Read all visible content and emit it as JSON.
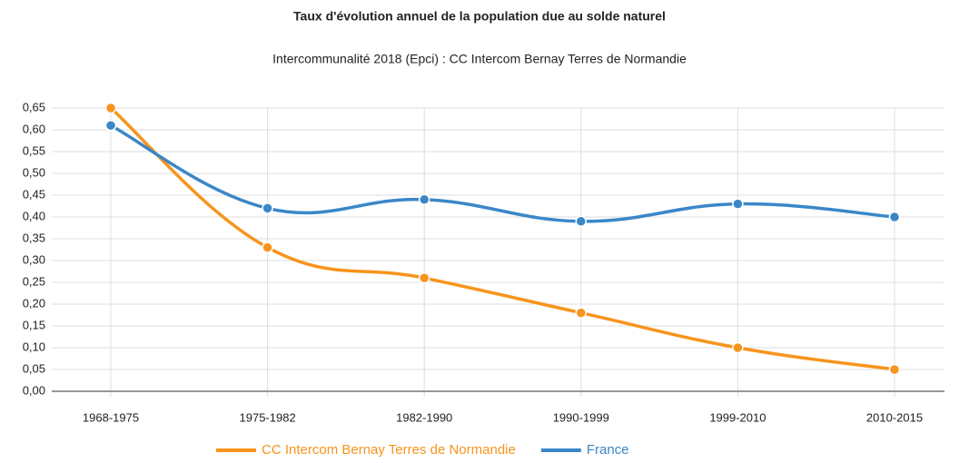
{
  "chart_data": {
    "type": "line",
    "title": "Taux d'évolution annuel de la population due au solde naturel",
    "subtitle": "Intercommunalité 2018 (Epci) : CC Intercom Bernay Terres de Normandie",
    "categories": [
      "1968-1975",
      "1975-1982",
      "1982-1990",
      "1990-1999",
      "1999-2010",
      "2010-2015"
    ],
    "series": [
      {
        "name": "CC Intercom Bernay Terres de Normandie",
        "color": "#f7941d",
        "values": [
          0.65,
          0.33,
          0.26,
          0.18,
          0.1,
          0.05
        ]
      },
      {
        "name": "France",
        "color": "#3a87c8",
        "values": [
          0.61,
          0.42,
          0.44,
          0.39,
          0.43,
          0.4
        ]
      }
    ],
    "ylim": [
      0,
      0.65
    ],
    "yticks": [
      {
        "value": 0,
        "label": "0,00"
      },
      {
        "value": 0.05,
        "label": "0,05"
      },
      {
        "value": 0.1,
        "label": "0,10"
      },
      {
        "value": 0.15,
        "label": "0,15"
      },
      {
        "value": 0.2,
        "label": "0,20"
      },
      {
        "value": 0.25,
        "label": "0,25"
      },
      {
        "value": 0.3,
        "label": "0,30"
      },
      {
        "value": 0.35,
        "label": "0,35"
      },
      {
        "value": 0.4,
        "label": "0,40"
      },
      {
        "value": 0.45,
        "label": "0,45"
      },
      {
        "value": 0.5,
        "label": "0,50"
      },
      {
        "value": 0.55,
        "label": "0,55"
      },
      {
        "value": 0.6,
        "label": "0,60"
      },
      {
        "value": 0.65,
        "label": "0,65"
      }
    ],
    "grid": true
  }
}
